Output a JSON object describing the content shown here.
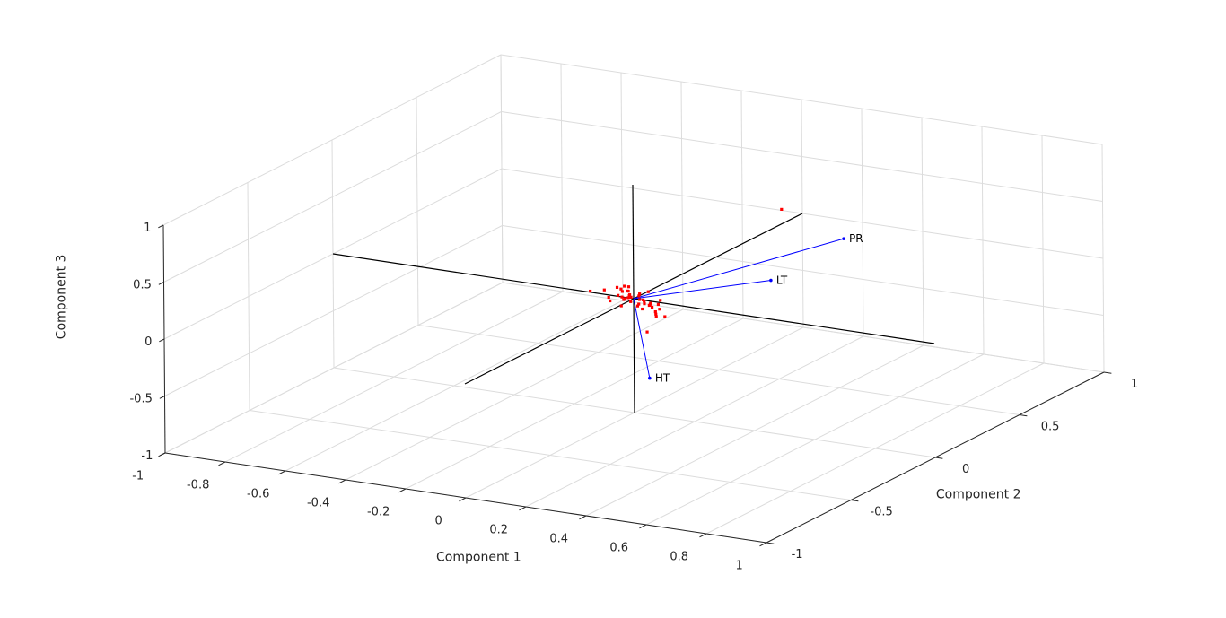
{
  "chart_data": {
    "type": "scatter",
    "subtype": "biplot-3d",
    "title": "",
    "xlabel": "Component 1",
    "ylabel": "Component 2",
    "zlabel": "Component 3",
    "xlim": [
      -1,
      1
    ],
    "ylim": [
      -1,
      1
    ],
    "zlim": [
      -1,
      1
    ],
    "x_ticks": [
      "-1",
      "-0.8",
      "-0.6",
      "-0.4",
      "-0.2",
      "0",
      "0.2",
      "0.4",
      "0.6",
      "0.8",
      "1"
    ],
    "y_ticks": [
      "-1",
      "-0.5",
      "0",
      "0.5",
      "1"
    ],
    "z_ticks": [
      "-1",
      "-0.5",
      "0",
      "0.5",
      "1"
    ],
    "grid": true,
    "colors": {
      "vectors": "#0000ff",
      "points": "#ff0000",
      "reference_axes": "#000000"
    },
    "vectors": [
      {
        "label": "PR",
        "x": 0.56,
        "y": 0.25,
        "z": 0.56
      },
      {
        "label": "LT",
        "x": 0.48,
        "y": -0.04,
        "z": 0.38
      },
      {
        "label": "HT",
        "x": 0.48,
        "y": -0.76,
        "z": 0.06
      }
    ],
    "points": [
      {
        "x": 0.1,
        "y": 0.7,
        "z": 0.3
      },
      {
        "x": 0.14,
        "y": -0.17,
        "z": -0.11
      },
      {
        "x": -0.15,
        "y": 0.01,
        "z": 0.0
      },
      {
        "x": -0.12,
        "y": 0.04,
        "z": 0.0
      },
      {
        "x": -0.08,
        "y": 0.05,
        "z": -0.04
      },
      {
        "x": -0.1,
        "y": 0.08,
        "z": 0.0
      },
      {
        "x": -0.05,
        "y": 0.03,
        "z": -0.05
      },
      {
        "x": -0.1,
        "y": 0.03,
        "z": -0.05
      },
      {
        "x": -0.09,
        "y": 0.02,
        "z": -0.07
      },
      {
        "x": -0.03,
        "y": -0.02,
        "z": -0.06
      },
      {
        "x": -0.07,
        "y": 0.07,
        "z": 0.03
      },
      {
        "x": -0.07,
        "y": 0.05,
        "z": 0.02
      },
      {
        "x": -0.05,
        "y": 0.06,
        "z": 0.04
      },
      {
        "x": -0.06,
        "y": 0.04,
        "z": 0.01
      },
      {
        "x": -0.04,
        "y": 0.04,
        "z": 0.02
      },
      {
        "x": -0.05,
        "y": 0.02,
        "z": -0.02
      },
      {
        "x": -0.03,
        "y": 0.03,
        "z": 0.0
      },
      {
        "x": -0.04,
        "y": 0.02,
        "z": -0.03
      },
      {
        "x": -0.02,
        "y": 0.01,
        "z": 0.01
      },
      {
        "x": -0.02,
        "y": 0.02,
        "z": -0.01
      },
      {
        "x": -0.01,
        "y": 0.0,
        "z": -0.03
      },
      {
        "x": -0.02,
        "y": 0.0,
        "z": 0.06
      },
      {
        "x": 0.02,
        "y": 0.0,
        "z": 0.05
      },
      {
        "x": 0.02,
        "y": 0.0,
        "z": 0.0
      },
      {
        "x": 0.03,
        "y": 0.01,
        "z": -0.04
      },
      {
        "x": 0.04,
        "y": -0.02,
        "z": -0.06
      },
      {
        "x": 0.03,
        "y": -0.03,
        "z": -0.03
      },
      {
        "x": 0.01,
        "y": -0.05,
        "z": 0.05
      },
      {
        "x": 0.02,
        "y": -0.06,
        "z": 0.08
      },
      {
        "x": 0.04,
        "y": -0.04,
        "z": 0.07
      },
      {
        "x": 0.06,
        "y": -0.05,
        "z": 0.05
      },
      {
        "x": 0.08,
        "y": -0.05,
        "z": 0.01
      },
      {
        "x": 0.09,
        "y": -0.06,
        "z": 0.04
      },
      {
        "x": 0.11,
        "y": -0.05,
        "z": 0.03
      },
      {
        "x": 0.08,
        "y": -0.08,
        "z": 0.07
      },
      {
        "x": 0.1,
        "y": -0.08,
        "z": 0.05
      },
      {
        "x": 0.12,
        "y": -0.06,
        "z": 0.0
      },
      {
        "x": 0.13,
        "y": -0.1,
        "z": -0.01
      },
      {
        "x": 0.12,
        "y": -0.08,
        "z": -0.05
      },
      {
        "x": 0.14,
        "y": -0.12,
        "z": 0.03
      },
      {
        "x": 0.16,
        "y": -0.1,
        "z": -0.02
      },
      {
        "x": 0.05,
        "y": 0.02,
        "z": -0.07
      },
      {
        "x": 0.0,
        "y": 0.03,
        "z": -0.07
      },
      {
        "x": 0.06,
        "y": -0.02,
        "z": 0.1
      },
      {
        "x": 0.1,
        "y": -0.02,
        "z": 0.04
      }
    ]
  }
}
